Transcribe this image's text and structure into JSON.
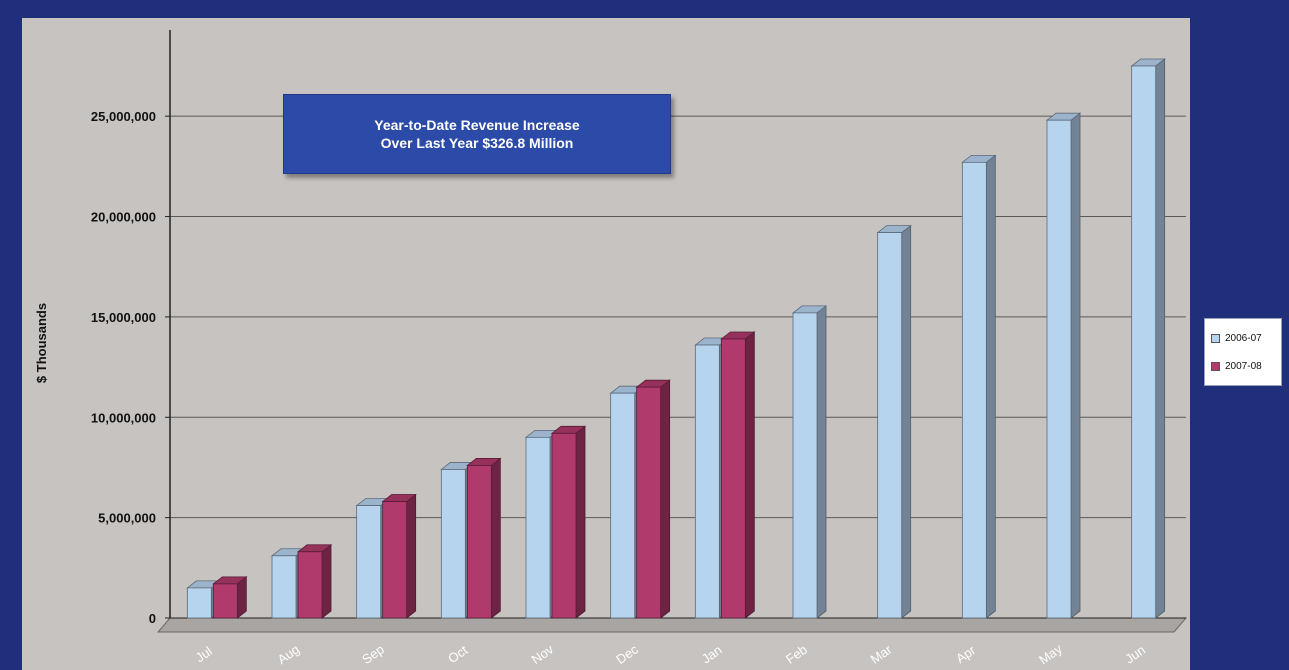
{
  "colors": {
    "background": "#1f2f7a",
    "plot_area": "#c7c3c0",
    "floor": "#a9a5a2",
    "series_2006_07": "#b7d4ef",
    "series_2007_08": "#b03a6c"
  },
  "callout": {
    "line1": "Year-to-Date Revenue Increase",
    "line2": "Over Last Year $326.8 Million"
  },
  "chart_data": {
    "type": "bar",
    "ylabel": "$ Thousands",
    "ylim": [
      0,
      27500000
    ],
    "yticks": [
      0,
      5000000,
      10000000,
      15000000,
      20000000,
      25000000
    ],
    "ytick_labels": [
      "0",
      "5,000,000",
      "10,000,000",
      "15,000,000",
      "20,000,000",
      "25,000,000"
    ],
    "grid": true,
    "legend_position": "right",
    "categories": [
      "Jul",
      "Aug",
      "Sep",
      "Oct",
      "Nov",
      "Dec",
      "Jan",
      "Feb",
      "Mar",
      "Apr",
      "May",
      "Jun"
    ],
    "series": [
      {
        "name": "2006-07",
        "values": [
          1500000,
          3100000,
          5600000,
          7400000,
          9000000,
          11200000,
          13600000,
          15200000,
          19200000,
          22700000,
          24800000,
          27500000
        ]
      },
      {
        "name": "2007-08",
        "values": [
          1700000,
          3300000,
          5800000,
          7600000,
          9200000,
          11500000,
          13900000,
          null,
          null,
          null,
          null,
          null
        ]
      }
    ]
  }
}
